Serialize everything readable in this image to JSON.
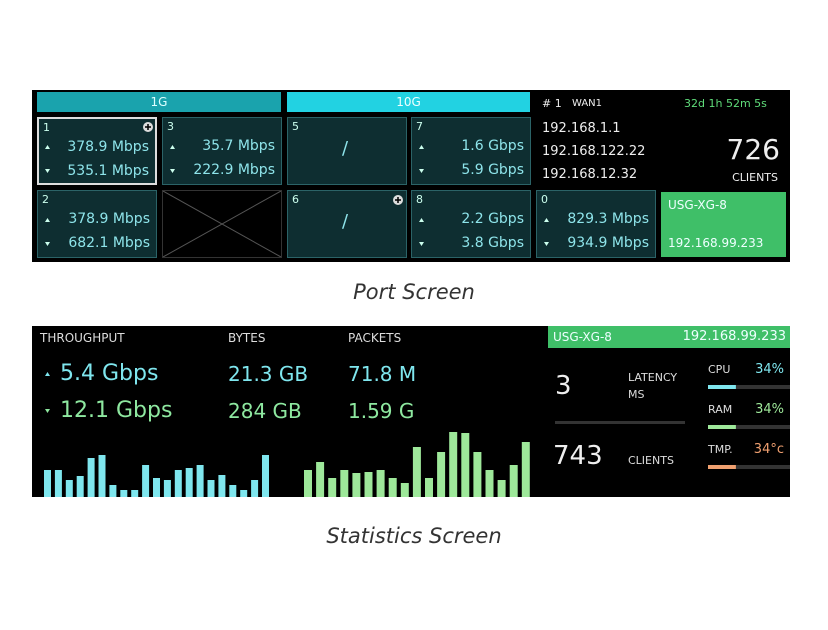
{
  "port_screen": {
    "caption": "Port Screen",
    "groups": [
      "1G",
      "10G"
    ],
    "ports": [
      {
        "id": "1",
        "up": "378.9 Mbps",
        "down": "535.1 Mbps"
      },
      {
        "id": "3",
        "up": "35.7 Mbps",
        "down": "222.9 Mbps"
      },
      {
        "id": "5",
        "text": "/"
      },
      {
        "id": "7",
        "up": "1.6 Gbps",
        "down": "5.9 Gbps"
      },
      {
        "id": "2",
        "up": "378.9 Mbps",
        "down": "682.1 Mbps"
      },
      {
        "id": "6",
        "text": "/"
      },
      {
        "id": "8",
        "up": "2.2 Gbps",
        "down": "3.8 Gbps"
      },
      {
        "id": "0",
        "up": "829.3 Mbps",
        "down": "934.9 Mbps"
      }
    ],
    "wan": {
      "label": "# 1",
      "name": "WAN1",
      "uptime": "32d 1h 52m 5s",
      "ips": [
        "192.168.1.1",
        "192.168.122.22",
        "192.168.12.32"
      ],
      "clients": "726",
      "clients_label": "CLIENTS"
    },
    "device": {
      "name": "USG-XG-8",
      "ip": "192.168.99.233"
    }
  },
  "stats_screen": {
    "caption": "Statistics Screen",
    "headers": [
      "THROUGHPUT",
      "BYTES",
      "PACKETS"
    ],
    "throughput": {
      "up": "5.4 Gbps",
      "down": "12.1 Gbps"
    },
    "bytes": {
      "up": "21.3 GB",
      "down": "284 GB"
    },
    "packets": {
      "up": "71.8 M",
      "down": "1.59 G"
    },
    "upload_history": [
      27,
      27,
      17,
      21,
      39,
      42,
      12,
      7,
      7,
      32,
      19,
      17,
      27,
      29,
      32,
      17,
      22,
      12,
      7,
      17,
      42
    ],
    "download_history": [
      27,
      35,
      19,
      27,
      24,
      25,
      27,
      19,
      14,
      50,
      19,
      45,
      65,
      64,
      45,
      27,
      17,
      32,
      55
    ],
    "device": {
      "name": "USG-XG-8",
      "ip": "192.168.99.233"
    },
    "latency": "3",
    "latency_label": [
      "LATENCY",
      "MS"
    ],
    "clients": "743",
    "clients_label": "CLIENTS",
    "resources": [
      {
        "name": "CPU",
        "value": 34,
        "label": "34%",
        "color": "#7fe6ee"
      },
      {
        "name": "RAM",
        "value": 34,
        "label": "34%",
        "color": "#9ee89a"
      },
      {
        "name": "TMP.",
        "value": 34,
        "label": "34°c",
        "color": "#f0a070"
      }
    ]
  }
}
